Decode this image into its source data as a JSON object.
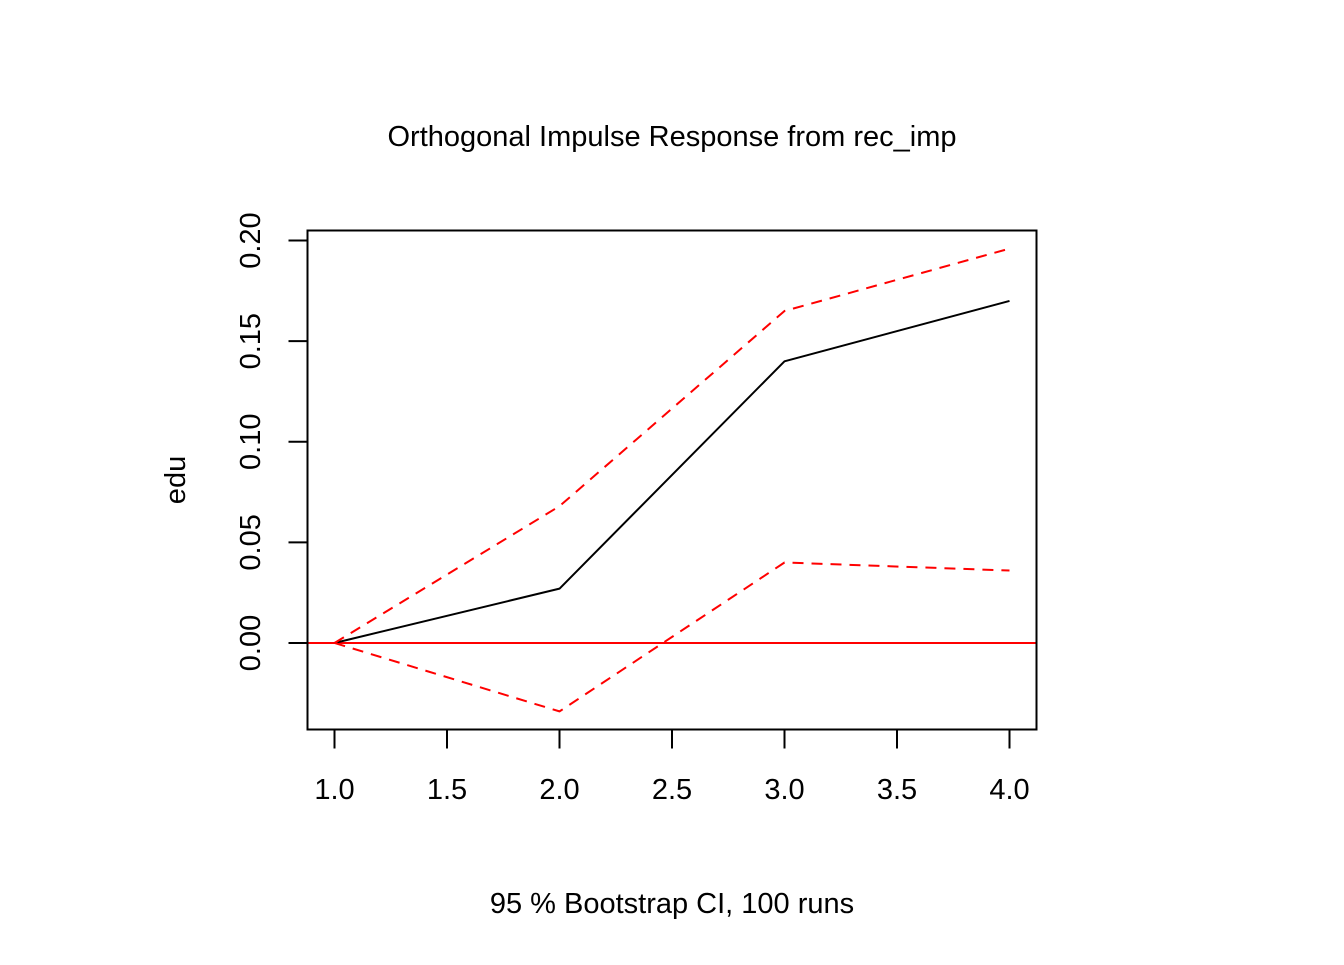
{
  "chart_data": {
    "type": "line",
    "title": "Orthogonal Impulse Response from rec_imp",
    "xlabel": "95 % Bootstrap CI,  100 runs",
    "ylabel": "edu",
    "x": [
      1,
      2,
      3,
      4
    ],
    "xlim": [
      0.88,
      4.12
    ],
    "ylim": [
      -0.043,
      0.205
    ],
    "xticks": [
      1.0,
      1.5,
      2.0,
      2.5,
      3.0,
      3.5,
      4.0
    ],
    "xtick_labels": [
      "1.0",
      "1.5",
      "2.0",
      "2.5",
      "3.0",
      "3.5",
      "4.0"
    ],
    "yticks": [
      0.0,
      0.05,
      0.1,
      0.15,
      0.2
    ],
    "ytick_labels": [
      "0.00",
      "0.05",
      "0.10",
      "0.15",
      "0.20"
    ],
    "grid": false,
    "legend": "none",
    "series": [
      {
        "key": "irf",
        "values": [
          0.0,
          0.027,
          0.14,
          0.17
        ],
        "color": "#000000",
        "style": "solid"
      },
      {
        "key": "upper",
        "values": [
          0.0,
          0.068,
          0.165,
          0.196
        ],
        "color": "#ff0000",
        "style": "dashed"
      },
      {
        "key": "lower",
        "values": [
          0.0,
          -0.034,
          0.04,
          0.036
        ],
        "color": "#ff0000",
        "style": "dashed"
      }
    ],
    "reference_lines": [
      {
        "key": "zero",
        "y": 0.0,
        "color": "#ff0000",
        "style": "solid"
      }
    ]
  }
}
